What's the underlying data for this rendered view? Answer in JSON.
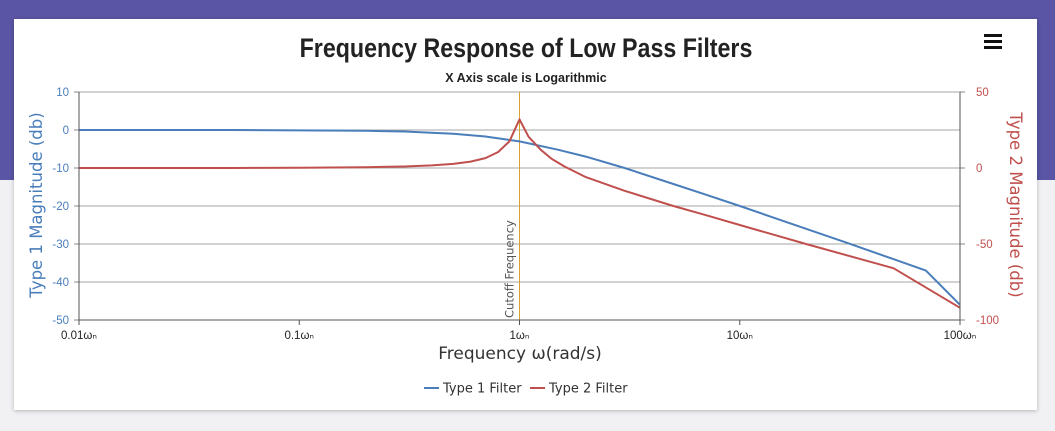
{
  "chart_data": {
    "type": "line",
    "title": "Frequency Response of Low Pass Filters",
    "subtitle": "X Axis scale is Logarithmic",
    "xlabel": "Frequency ω(rad/s)",
    "x_scale": "log",
    "xlim": [
      0.01,
      100
    ],
    "x_ticks": [
      {
        "value": 0.01,
        "label": "0.01ωₙ"
      },
      {
        "value": 0.1,
        "label": "0.1ωₙ"
      },
      {
        "value": 1,
        "label": "1ωₙ"
      },
      {
        "value": 10,
        "label": "10ωₙ"
      },
      {
        "value": 100,
        "label": "100ωₙ"
      }
    ],
    "y_left": {
      "label": "Type 1 Magnitude (db)",
      "ylim": [
        -50,
        10
      ],
      "ticks": [
        10,
        0,
        -10,
        -20,
        -30,
        -40,
        -50
      ],
      "color": "#4a7ebb"
    },
    "y_right": {
      "label": "Type 2 Magnitude (db)",
      "ylim": [
        -100,
        50
      ],
      "ticks": [
        50,
        0,
        -50,
        -100
      ],
      "color": "#c0504d"
    },
    "grid": true,
    "annotation": {
      "x": 1,
      "label": "Cutoff Frequency",
      "color": "#d9a02c"
    },
    "legend_position": "bottom",
    "series": [
      {
        "name": "Type 1 Filter",
        "color": "#4a7ebb",
        "axis": "left",
        "points": [
          [
            0.01,
            0
          ],
          [
            0.02,
            0
          ],
          [
            0.05,
            0
          ],
          [
            0.1,
            -0.1
          ],
          [
            0.2,
            -0.2
          ],
          [
            0.3,
            -0.4
          ],
          [
            0.5,
            -1.0
          ],
          [
            0.7,
            -1.7
          ],
          [
            1,
            -3.0
          ],
          [
            1.5,
            -5.2
          ],
          [
            2,
            -7.0
          ],
          [
            3,
            -10.0
          ],
          [
            5,
            -14.2
          ],
          [
            7,
            -17.0
          ],
          [
            10,
            -20.0
          ],
          [
            20,
            -26.0
          ],
          [
            30,
            -29.5
          ],
          [
            50,
            -34.0
          ],
          [
            70,
            -37.0
          ],
          [
            100,
            -46.0
          ]
        ]
      },
      {
        "name": "Type 2 Filter",
        "color": "#c0504d",
        "axis": "right",
        "points": [
          [
            0.01,
            0
          ],
          [
            0.05,
            0
          ],
          [
            0.1,
            0.2
          ],
          [
            0.2,
            0.5
          ],
          [
            0.3,
            1.0
          ],
          [
            0.4,
            1.7
          ],
          [
            0.5,
            2.7
          ],
          [
            0.6,
            4.2
          ],
          [
            0.7,
            6.5
          ],
          [
            0.8,
            10.5
          ],
          [
            0.9,
            17.5
          ],
          [
            1,
            32.0
          ],
          [
            1.1,
            20.5
          ],
          [
            1.25,
            12.0
          ],
          [
            1.4,
            6.0
          ],
          [
            1.6,
            1.0
          ],
          [
            2,
            -6.0
          ],
          [
            3,
            -15.0
          ],
          [
            5,
            -25.0
          ],
          [
            7,
            -31.0
          ],
          [
            10,
            -37.5
          ],
          [
            20,
            -50.0
          ],
          [
            50,
            -66.0
          ],
          [
            100,
            -92.0
          ]
        ]
      }
    ]
  }
}
